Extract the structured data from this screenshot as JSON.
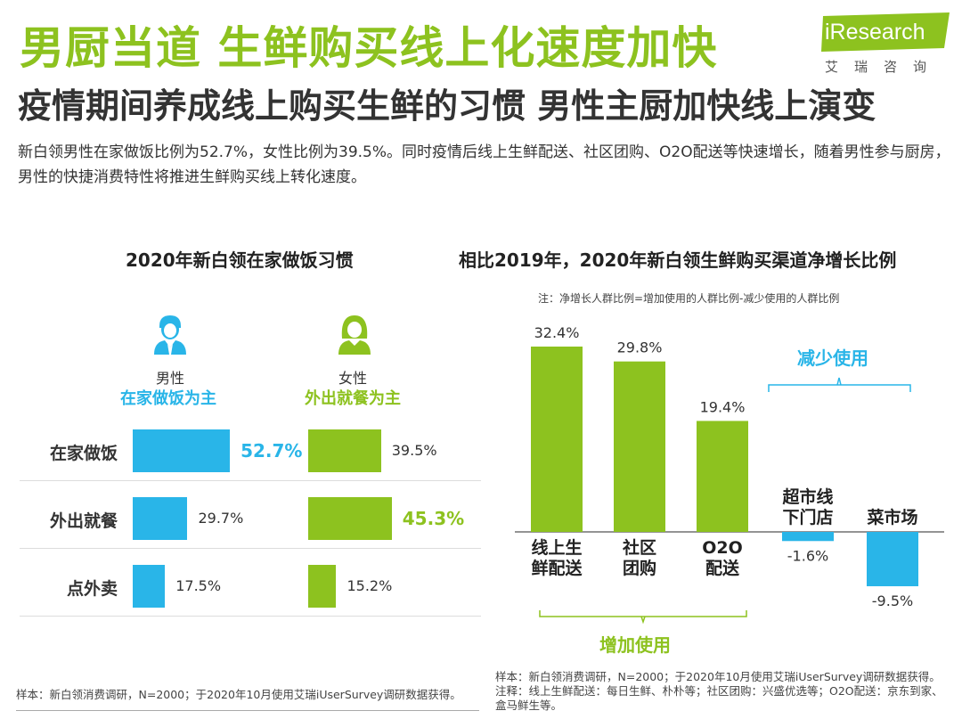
{
  "header": {
    "title": "男厨当道 生鲜购买线上化速度加快",
    "subtitle": "疫情期间养成线上购买生鲜的习惯 男性主厨加快线上演变",
    "intro": "新白领男性在家做饭比例为52.7%，女性比例为39.5%。同时疫情后线上生鲜配送、社区团购、O2O配送等快速增长，随着男性参与厨房，男性的快捷消费特性将推进生鲜购买线上转化速度。",
    "logo_text": "iResearch",
    "logo_cn": "艾瑞咨询"
  },
  "colors": {
    "blue": "#29b5e8",
    "green": "#8dc21f",
    "dark": "#333333"
  },
  "left_panel": {
    "male_label": "男性",
    "male_tag": "在家做饭为主",
    "female_label": "女性",
    "female_tag": "外出就餐为主",
    "source": "样本：新白领消费调研，N=2000；于2020年10月使用艾瑞iUserSurvey调研数据获得。"
  },
  "right_panel": {
    "note": "注：净增长人群比例=增加使用的人群比例-减少使用的人群比例",
    "increase_label": "增加使用",
    "decrease_label": "减少使用",
    "source_line1": "样本：新白领消费调研，N=2000；于2020年10月使用艾瑞iUserSurvey调研数据获得。",
    "source_line2": "注释：线上生鲜配送：每日生鲜、朴朴等；社区团购：兴盛优选等；O2O配送：京东到家、盒马鲜生等。"
  },
  "chart_data": [
    {
      "type": "bar",
      "orientation": "horizontal",
      "title": "2020年新白领在家做饭习惯",
      "categories": [
        "在家做饭",
        "外出就餐",
        "点外卖"
      ],
      "series": [
        {
          "name": "男性",
          "values": [
            52.7,
            29.7,
            17.5
          ],
          "labels": [
            "52.7%",
            "29.7%",
            "17.5%"
          ]
        },
        {
          "name": "女性",
          "values": [
            39.5,
            45.3,
            15.2
          ],
          "labels": [
            "39.5%",
            "45.3%",
            "15.2%"
          ]
        }
      ],
      "unit": "%"
    },
    {
      "type": "bar",
      "title": "相比2019年，2020年新白领生鲜购买渠道净增长比例",
      "categories": [
        "线上生鲜配送",
        "社区团购",
        "O2O配送",
        "超市线下门店",
        "菜市场"
      ],
      "category_lines": [
        [
          "线上生",
          "鲜配送"
        ],
        [
          "社区",
          "团购"
        ],
        [
          "O2O",
          "配送"
        ],
        [
          "超市线",
          "下门店"
        ],
        [
          "菜市场"
        ]
      ],
      "values": [
        32.4,
        29.8,
        19.4,
        -1.6,
        -9.5
      ],
      "labels": [
        "32.4%",
        "29.8%",
        "19.4%",
        "-1.6%",
        "-9.5%"
      ],
      "unit": "%"
    }
  ]
}
